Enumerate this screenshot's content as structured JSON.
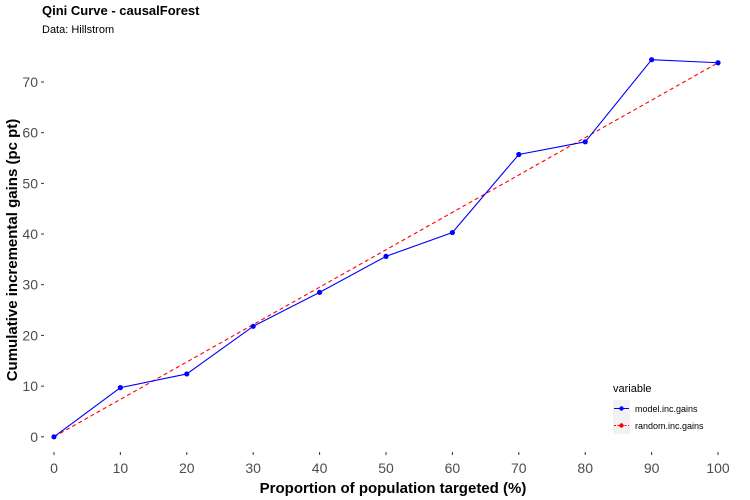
{
  "colors": {
    "model": "#0000ff",
    "random": "#ff0000",
    "tick_text": "#4d4d4d",
    "legend_key_bg": "#f2f2f2"
  },
  "chart_data": {
    "type": "line",
    "title": "Qini Curve -  causalForest",
    "subtitle": "Data: Hillstrom",
    "xlabel": "Proportion of population targeted (%)",
    "ylabel": "Cumulative incremental gains (pc pt)",
    "x": [
      0,
      10,
      20,
      30,
      40,
      50,
      60,
      70,
      80,
      90,
      100
    ],
    "x_ticks": [
      "0",
      "10",
      "20",
      "30",
      "40",
      "50",
      "60",
      "70",
      "80",
      "90",
      "100"
    ],
    "y_ticks": [
      "0",
      "10",
      "20",
      "30",
      "40",
      "50",
      "60",
      "70"
    ],
    "xlim": [
      -1.5,
      101.5
    ],
    "ylim": [
      -3.0,
      77.5
    ],
    "grid": false,
    "legend": {
      "title": "variable",
      "position": "bottom-right"
    },
    "series": [
      {
        "name": "model.inc.gains",
        "style": "solid",
        "markers": true,
        "values": [
          0,
          9.7,
          12.4,
          21.8,
          28.5,
          35.6,
          40.3,
          55.7,
          58.2,
          74.4,
          73.8
        ]
      },
      {
        "name": "random.inc.gains",
        "style": "dashed",
        "markers": false,
        "values": [
          0,
          7.38,
          14.76,
          22.14,
          29.52,
          36.9,
          44.28,
          51.66,
          59.04,
          66.42,
          73.8
        ]
      }
    ]
  }
}
